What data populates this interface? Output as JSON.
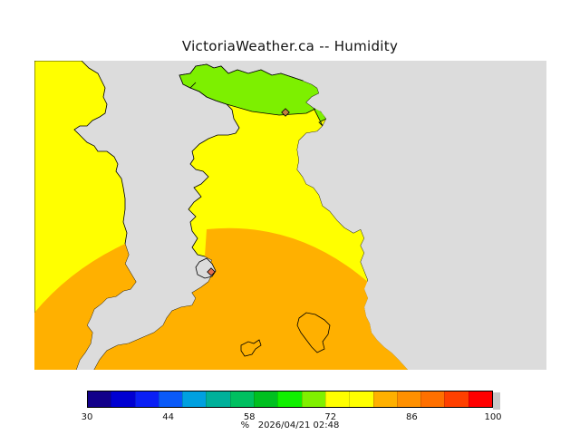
{
  "title": "VictoriaWeather.ca -- Humidity",
  "legend": {
    "unit": "%",
    "timestamp": "2026/04/21 02:48",
    "ticks": [
      "30",
      "44",
      "58",
      "72",
      "86",
      "100"
    ],
    "colors": [
      "#12008a",
      "#0000d2",
      "#0a1ff5",
      "#0a5af8",
      "#00a0e0",
      "#00b09a",
      "#00c060",
      "#00c020",
      "#10f000",
      "#80f000",
      "#ffff00",
      "#ffff00",
      "#ffb000",
      "#ff9000",
      "#ff7000",
      "#ff4000",
      "#ff0000"
    ]
  },
  "map": {
    "land_colors": {
      "yellow": "#ffff00",
      "orange": "#ffb000",
      "green": "#7df000",
      "water": "#dcdcdc"
    },
    "station_markers": [
      "station-marker-north",
      "station-marker-south"
    ]
  }
}
